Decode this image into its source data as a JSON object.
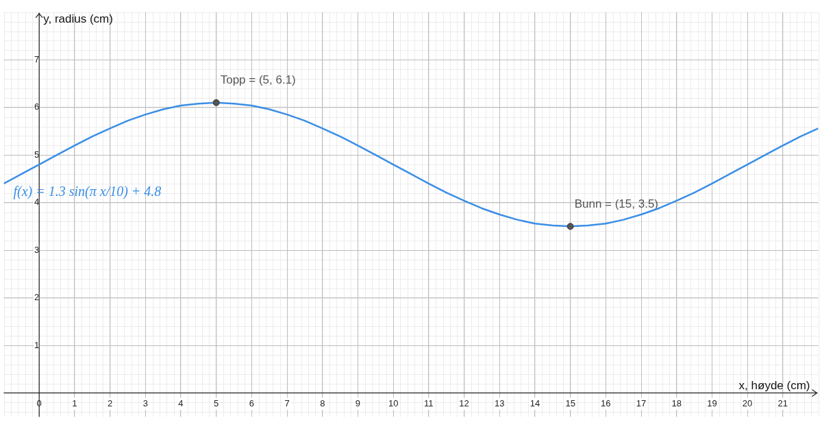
{
  "chart_data": {
    "type": "line",
    "xlabel": "x, høyde (cm)",
    "ylabel": "y, radius (cm)",
    "xlim": [
      -1,
      22
    ],
    "ylim": [
      -0.5,
      8
    ],
    "xticks": [
      0,
      1,
      2,
      3,
      4,
      5,
      6,
      7,
      8,
      9,
      10,
      11,
      12,
      13,
      14,
      15,
      16,
      17,
      18,
      19,
      20,
      21
    ],
    "yticks": [
      1,
      2,
      3,
      4,
      5,
      6,
      7
    ],
    "grid": true,
    "legend": false,
    "series": [
      {
        "type": "line",
        "color": "#3a8ee6",
        "marker": "none",
        "x": [
          -1,
          -0.5,
          0,
          0.5,
          1,
          1.5,
          2,
          2.5,
          3,
          3.5,
          4,
          4.5,
          5,
          5.5,
          6,
          6.5,
          7,
          7.5,
          8,
          8.5,
          9,
          9.5,
          10,
          10.5,
          11,
          11.5,
          12,
          12.5,
          13,
          13.5,
          14,
          14.5,
          15,
          15.5,
          16,
          16.5,
          17,
          17.5,
          18,
          18.5,
          19,
          19.5,
          20,
          20.5,
          21,
          21.5,
          22
        ],
        "values": [
          4.4,
          4.6,
          4.8,
          5.0,
          5.2,
          5.39,
          5.56,
          5.72,
          5.85,
          5.96,
          6.04,
          6.08,
          6.1,
          6.08,
          6.04,
          5.96,
          5.85,
          5.72,
          5.56,
          5.39,
          5.2,
          5.0,
          4.8,
          4.6,
          4.4,
          4.21,
          4.04,
          3.88,
          3.75,
          3.64,
          3.56,
          3.52,
          3.5,
          3.52,
          3.56,
          3.64,
          3.75,
          3.88,
          4.04,
          4.21,
          4.4,
          4.6,
          4.8,
          5.0,
          5.2,
          5.39,
          5.56
        ]
      },
      {
        "type": "scatter",
        "color": "#555555",
        "marker": "circle",
        "x": [
          5,
          15
        ],
        "values": [
          6.1,
          3.5
        ]
      }
    ],
    "annotations": [
      {
        "text": "Topp = (5, 6.1)",
        "x": 5,
        "y": 6.1
      },
      {
        "text": "Bunn = (15, 3.5)",
        "x": 15,
        "y": 3.5
      },
      "f(x) = 1.3 sin(π x/10) + 4.8"
    ]
  }
}
